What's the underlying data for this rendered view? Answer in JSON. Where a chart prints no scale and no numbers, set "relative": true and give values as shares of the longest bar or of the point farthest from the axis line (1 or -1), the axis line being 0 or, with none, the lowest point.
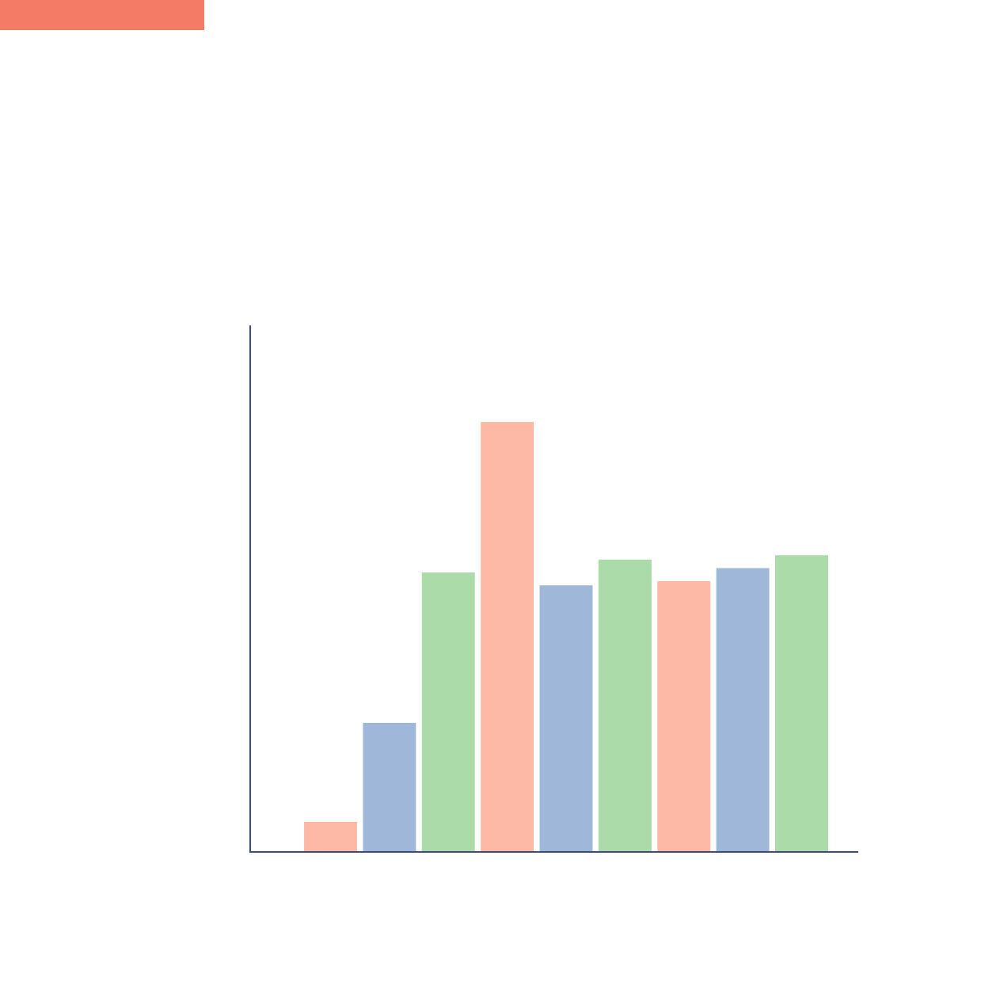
{
  "chart_data": {
    "type": "bar",
    "relative": true,
    "categories": [
      null,
      null,
      null,
      null,
      null,
      null,
      null,
      null,
      null
    ],
    "values": [
      0.07,
      0.3,
      0.65,
      1.0,
      0.62,
      0.68,
      0.63,
      0.66,
      0.69
    ],
    "colors": [
      "#fdb9a6",
      "#9fb8d9",
      "#aadba8",
      "#fdb9a6",
      "#9fb8d9",
      "#aadba8",
      "#fdb9a6",
      "#9fb8d9",
      "#aadba8"
    ]
  }
}
